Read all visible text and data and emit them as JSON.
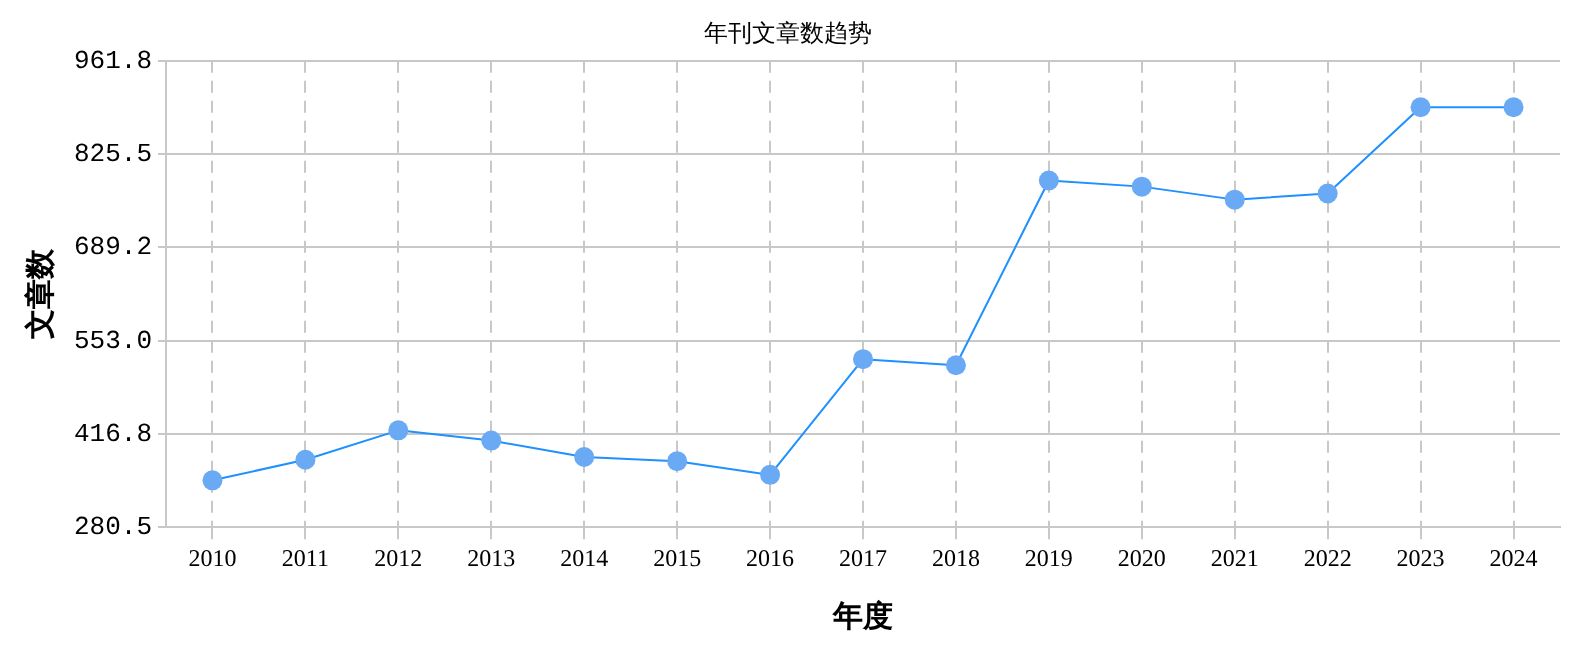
{
  "chart_data": {
    "type": "line",
    "title": "年刊文章数趋势",
    "xlabel": "年度",
    "ylabel": "文章数",
    "categories": [
      "2010",
      "2011",
      "2012",
      "2013",
      "2014",
      "2015",
      "2016",
      "2017",
      "2018",
      "2019",
      "2020",
      "2021",
      "2022",
      "2023",
      "2024"
    ],
    "series": [
      {
        "color": "#1e90ff",
        "values": [
          349,
          379,
          422,
          407,
          383,
          377,
          357,
          526,
          517,
          787,
          778,
          759,
          768,
          894,
          894
        ]
      }
    ],
    "ylim": [
      280.5,
      961.8
    ],
    "yticks": [
      280.5,
      416.8,
      {
        "value": 553.0,
        "label": "553.0"
      },
      689.2,
      825.5,
      961.8
    ],
    "grid": true,
    "marker": "circle",
    "line_style": "solid",
    "legend": false
  }
}
